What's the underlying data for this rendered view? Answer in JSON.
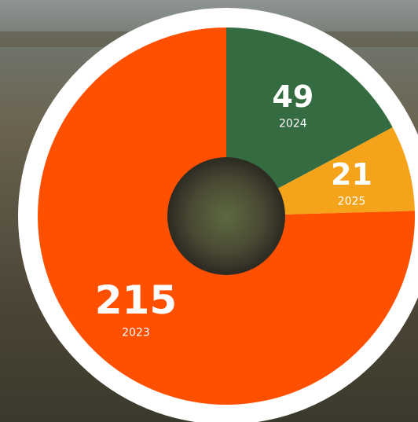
{
  "chart_data": {
    "type": "donut",
    "categories": [
      "2024",
      "2025",
      "2023"
    ],
    "values": [
      49,
      21,
      215
    ],
    "colors": [
      "#356b40",
      "#f5a31a",
      "#ff5000"
    ]
  }
}
